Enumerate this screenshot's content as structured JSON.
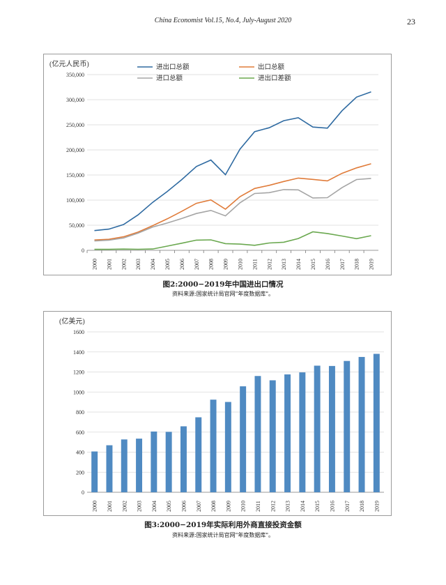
{
  "header": {
    "journal": "China Economist Vol.15, No.4, July-August 2020",
    "page_number": "23"
  },
  "figures": [
    {
      "caption": "图2:2000−2019年中国进出口情况",
      "source": "资料来源:国家统计局官网\"年度数据库\"。"
    },
    {
      "caption": "图3:2000−2019年实际利用外商直接投资金额",
      "source": "资料来源:国家统计局官网\"年度数据库\"。"
    }
  ],
  "chart_data": [
    {
      "type": "line",
      "unit_label": "(亿元人民币)",
      "x": [
        "2000",
        "2001",
        "2002",
        "2003",
        "2004",
        "2005",
        "2006",
        "2007",
        "2008",
        "2009",
        "2010",
        "2011",
        "2012",
        "2013",
        "2014",
        "2015",
        "2016",
        "2017",
        "2018",
        "2019"
      ],
      "ylim": [
        0,
        350000
      ],
      "yticks": [
        "0",
        "50,000",
        "100,000",
        "150,000",
        "200,000",
        "250,000",
        "300,000",
        "350,000"
      ],
      "grid": true,
      "legend_position": "top",
      "series": [
        {
          "name": "进出口总额",
          "color": "#2e6aa1",
          "values": [
            39300,
            42200,
            51400,
            70500,
            95500,
            116900,
            140900,
            166900,
            179900,
            150600,
            201700,
            236400,
            244200,
            258200,
            264200,
            245500,
            243400,
            278100,
            305100,
            315600
          ]
        },
        {
          "name": "出口总额",
          "color": "#e07b39",
          "values": [
            20600,
            22000,
            26900,
            36300,
            49100,
            62600,
            77600,
            93600,
            100400,
            82000,
            107000,
            123200,
            129400,
            137100,
            143900,
            141200,
            138400,
            153300,
            164100,
            172300
          ]
        },
        {
          "name": "进口总额",
          "color": "#a5a5a5",
          "values": [
            18600,
            20200,
            24400,
            34200,
            46400,
            54300,
            63400,
            73300,
            79500,
            68600,
            94700,
            113200,
            114800,
            121000,
            120400,
            104300,
            104900,
            124800,
            141000,
            143200
          ]
        },
        {
          "name": "进出口差额",
          "color": "#6aa84f",
          "values": [
            2000,
            1900,
            2500,
            2100,
            2700,
            8400,
            14200,
            20300,
            20900,
            13400,
            12300,
            10000,
            14600,
            16100,
            23500,
            36800,
            33500,
            28500,
            23200,
            29100
          ]
        }
      ]
    },
    {
      "type": "bar",
      "unit_label": "(亿美元)",
      "categories": [
        "2000",
        "2001",
        "2002",
        "2003",
        "2004",
        "2005",
        "2006",
        "2007",
        "2008",
        "2009",
        "2010",
        "2011",
        "2012",
        "2013",
        "2014",
        "2015",
        "2016",
        "2017",
        "2018",
        "2019"
      ],
      "values": [
        407,
        469,
        527,
        535,
        606,
        603,
        658,
        748,
        924,
        901,
        1057,
        1160,
        1117,
        1176,
        1196,
        1263,
        1260,
        1310,
        1350,
        1381
      ],
      "ylim": [
        0,
        1600
      ],
      "yticks": [
        "0",
        "200",
        "400",
        "600",
        "800",
        "1000",
        "1200",
        "1400",
        "1600"
      ],
      "grid": true,
      "color": "#4f8ac2"
    }
  ]
}
